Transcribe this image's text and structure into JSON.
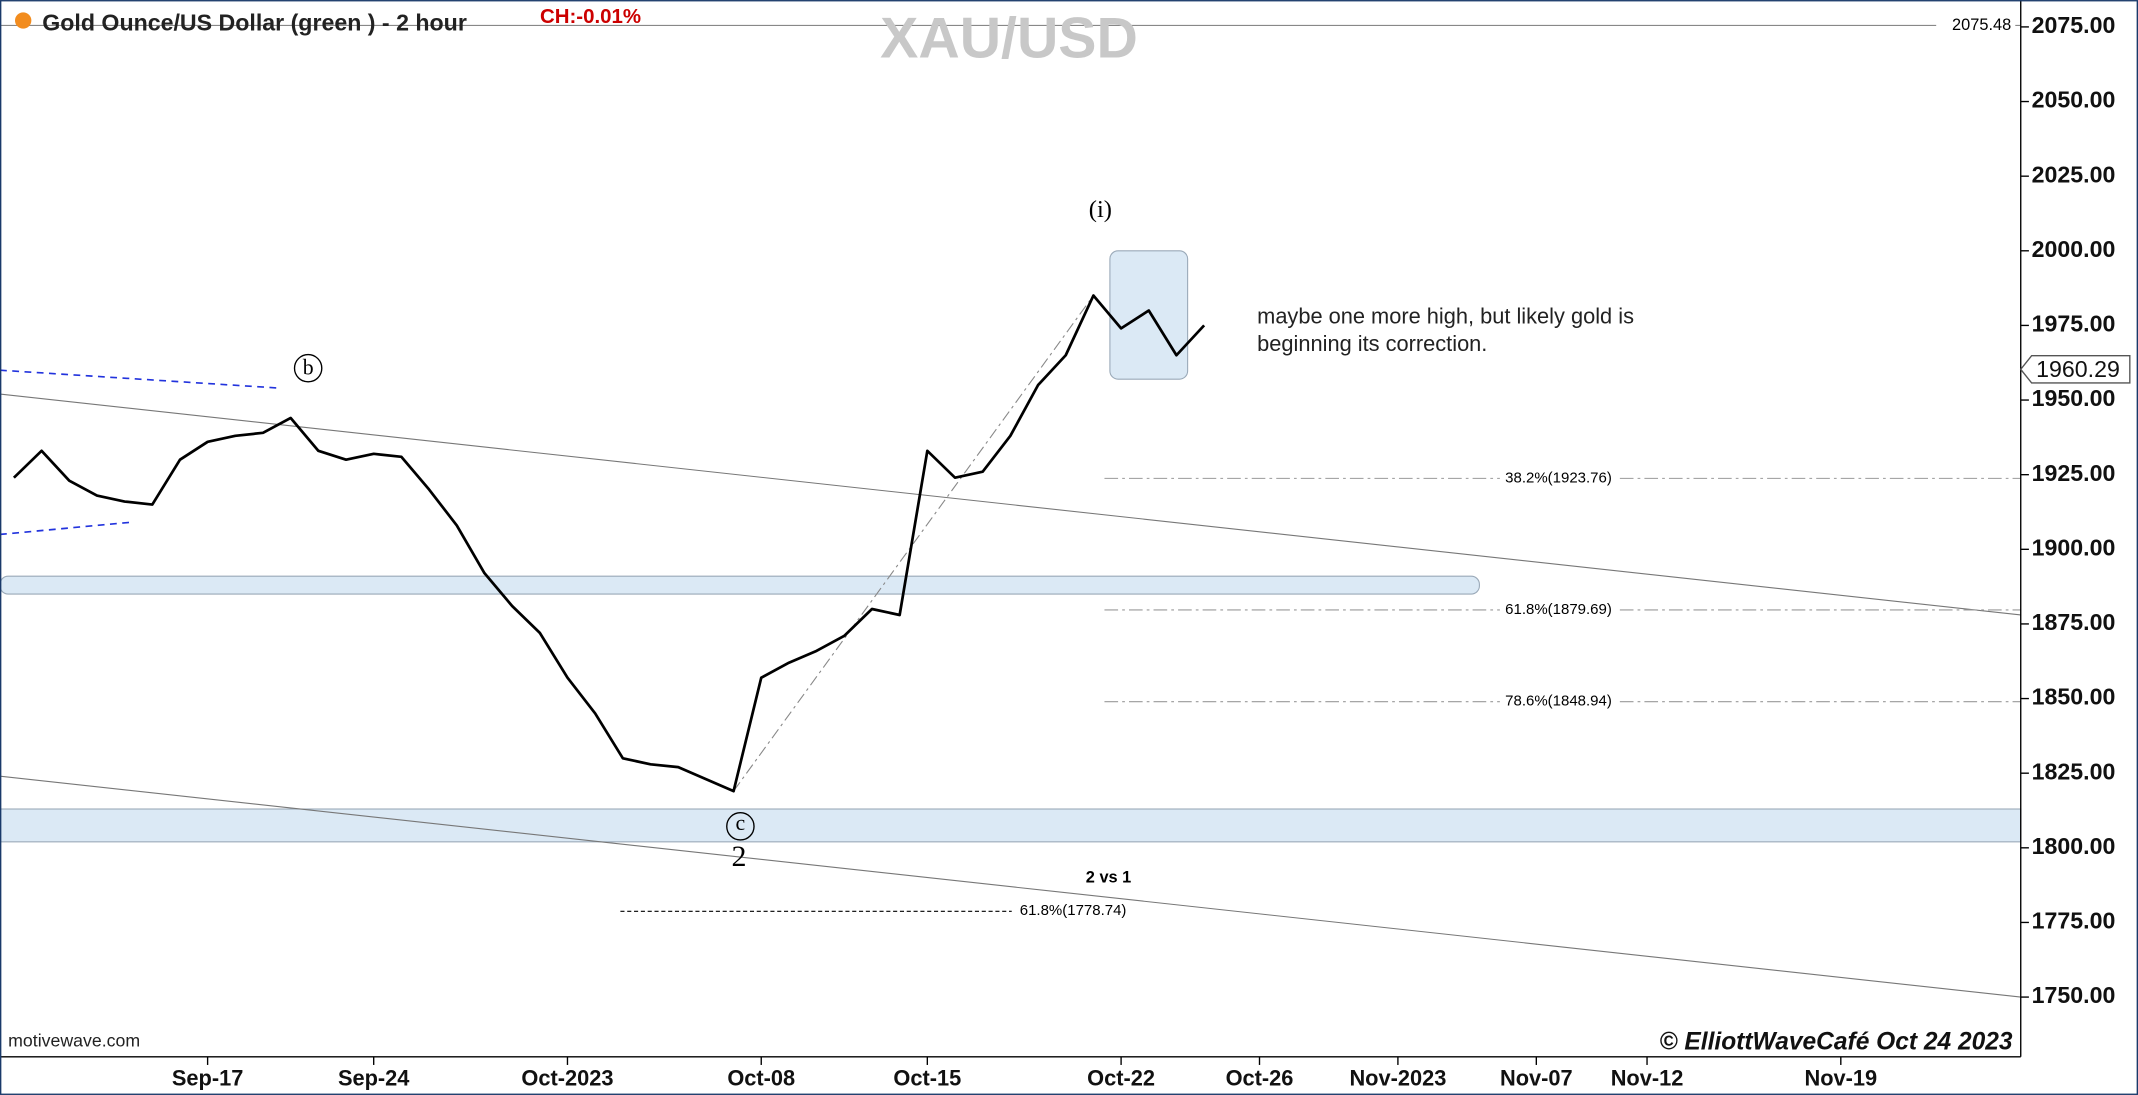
{
  "chart_data": {
    "type": "line",
    "title": "Gold Ounce/US Dollar (green ) - 2 hour",
    "change": "CH:-0.01%",
    "watermark": "XAU/USD",
    "categories": [
      null,
      null,
      null,
      null,
      null,
      null,
      null,
      "Sep-17",
      null,
      null,
      null,
      null,
      null,
      "Sep-24",
      null,
      null,
      null,
      null,
      null,
      null,
      "Oct-2023",
      null,
      null,
      null,
      null,
      null,
      null,
      "Oct-08",
      null,
      null,
      null,
      null,
      null,
      "Oct-15",
      null,
      null,
      null,
      null,
      null,
      null,
      "Oct-22",
      null,
      null,
      null,
      null,
      "Oct-26",
      null,
      null,
      null,
      null,
      "Nov-2023",
      null,
      null,
      null,
      null,
      "Nov-07",
      null,
      null,
      null,
      "Nov-12",
      null,
      null,
      null,
      null,
      null,
      null,
      "Nov-19",
      null,
      null,
      null,
      null,
      null,
      null
    ],
    "values": [
      1924,
      1933,
      1923,
      1918,
      1916,
      1915,
      1930,
      1936,
      1938,
      1939,
      1944,
      1933,
      1930,
      1932,
      1931,
      1920,
      1908,
      1892,
      1881,
      1872,
      1857,
      1845,
      1830,
      1828,
      1827,
      1823,
      1819,
      1857,
      1862,
      1866,
      1871,
      1880,
      1878,
      1933,
      1924,
      1926,
      1938,
      1955,
      1965,
      1985,
      1974,
      1980,
      1965,
      1975,
      null,
      null,
      null,
      null,
      null,
      null,
      null,
      null,
      null,
      null,
      null,
      null,
      null,
      null,
      null,
      null,
      null,
      null,
      null,
      null,
      null,
      null,
      null,
      null,
      null,
      null,
      null,
      null,
      null
    ],
    "color": "#000000",
    "ylim": [
      1730,
      2084
    ],
    "yticks": [
      {
        "value": 1750,
        "label": "1750.00"
      },
      {
        "value": 1775,
        "label": "1775.00"
      },
      {
        "value": 1800,
        "label": "1800.00"
      },
      {
        "value": 1825,
        "label": "1825.00"
      },
      {
        "value": 1850,
        "label": "1850.00"
      },
      {
        "value": 1875,
        "label": "1875.00"
      },
      {
        "value": 1900,
        "label": "1900.00"
      },
      {
        "value": 1925,
        "label": "1925.00"
      },
      {
        "value": 1950,
        "label": "1950.00"
      },
      {
        "value": 1975,
        "label": "1975.00"
      },
      {
        "value": 2000,
        "label": "2000.00"
      },
      {
        "value": 2025,
        "label": "2025.00"
      },
      {
        "value": 2050,
        "label": "2050.00"
      },
      {
        "value": 2075,
        "label": "2075.00"
      }
    ],
    "reference_price": 2075.48,
    "last_price": 1960.29,
    "zones": [
      {
        "low": 1885,
        "high": 1891
      },
      {
        "low": 1802,
        "high": 1813
      },
      {
        "low": 1957,
        "high": 2000
      }
    ],
    "trend_lines": [
      {
        "start": 1952,
        "end": 1878
      },
      {
        "start": 1824,
        "end": 1750
      }
    ],
    "dashed_lines": [
      {
        "start": 1960,
        "end": 1954
      },
      {
        "start": 1905,
        "end": 1909
      }
    ],
    "fib_levels": [
      {
        "label": "38.2%(1923.76)",
        "value": 1923.76
      },
      {
        "label": "61.8%(1879.69)",
        "value": 1879.69
      },
      {
        "label": "78.6%(1848.94)",
        "value": 1848.94
      }
    ],
    "target_level": {
      "label": "61.8%(1778.74)",
      "value": 1778.74
    },
    "comparison_label": "2 vs 1",
    "wave_labels": [
      "(i)",
      "b",
      "c",
      "2"
    ],
    "note": [
      "maybe one more high, but likely gold is",
      "beginning its correction."
    ],
    "source": "motivewave.com",
    "copyright": "© ElliottWaveCafé Oct 24 2023"
  }
}
